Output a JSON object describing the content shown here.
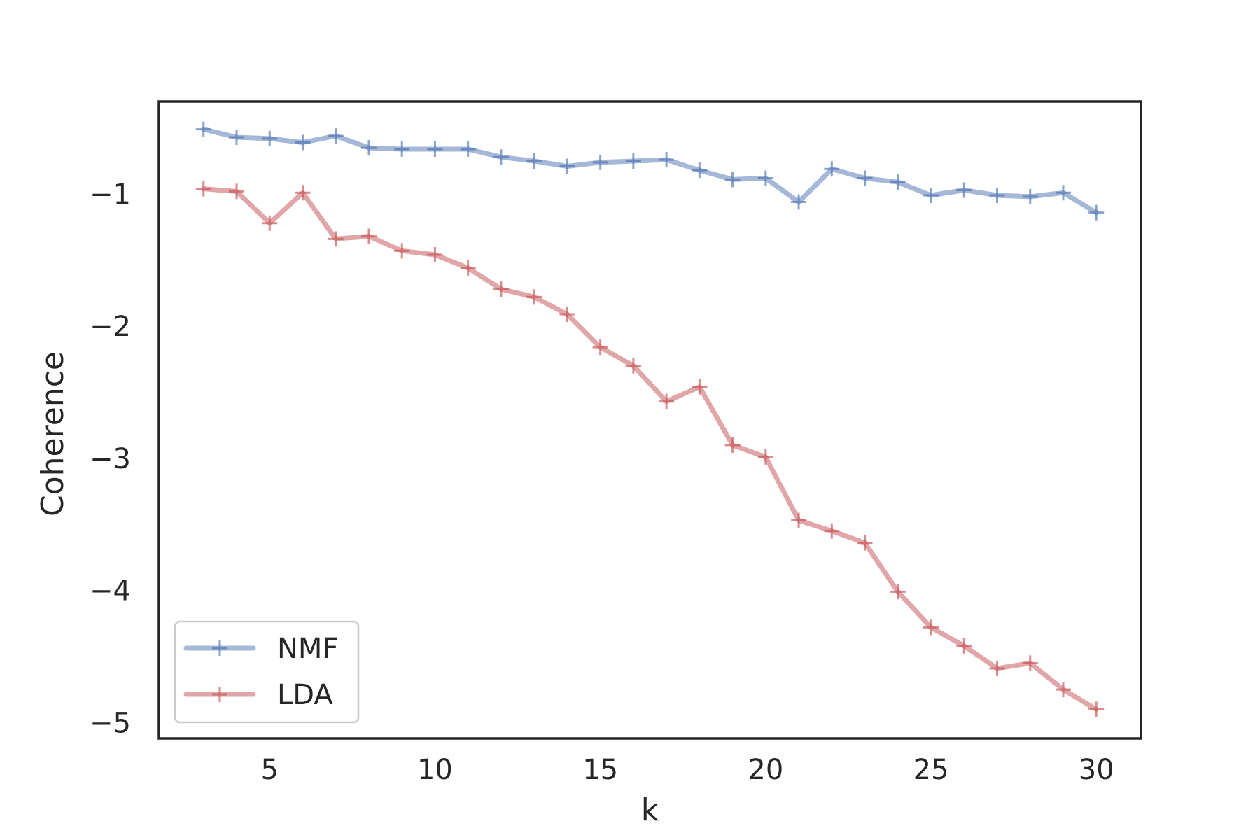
{
  "chart_data": {
    "type": "line",
    "xlabel": "k",
    "ylabel": "Coherence",
    "x": [
      3,
      4,
      5,
      6,
      7,
      8,
      9,
      10,
      11,
      12,
      13,
      14,
      15,
      16,
      17,
      18,
      19,
      20,
      21,
      22,
      23,
      24,
      25,
      26,
      27,
      28,
      29,
      30
    ],
    "xlim": [
      1.65,
      31.35
    ],
    "ylim": [
      -5.12,
      -0.3
    ],
    "xticks": [
      5,
      10,
      15,
      20,
      25,
      30
    ],
    "yticks": [
      -1,
      -2,
      -3,
      -4,
      -5
    ],
    "xtick_labels": [
      "5",
      "10",
      "15",
      "20",
      "25",
      "30"
    ],
    "ytick_labels": [
      "−1",
      "−2",
      "−3",
      "−4",
      "−5"
    ],
    "grid": false,
    "legend_position": "lower-left",
    "series": [
      {
        "name": "NMF",
        "color": "#4c72b0",
        "marker": "plus",
        "values": [
          -0.51,
          -0.57,
          -0.58,
          -0.61,
          -0.56,
          -0.65,
          -0.66,
          -0.66,
          -0.66,
          -0.72,
          -0.75,
          -0.79,
          -0.76,
          -0.75,
          -0.74,
          -0.82,
          -0.89,
          -0.88,
          -1.06,
          -0.81,
          -0.88,
          -0.91,
          -1.01,
          -0.97,
          -1.01,
          -1.02,
          -0.99,
          -1.14
        ]
      },
      {
        "name": "LDA",
        "color": "#c44e52",
        "marker": "plus",
        "values": [
          -0.96,
          -0.98,
          -1.22,
          -0.99,
          -1.34,
          -1.32,
          -1.43,
          -1.46,
          -1.56,
          -1.72,
          -1.78,
          -1.91,
          -2.16,
          -2.3,
          -2.57,
          -2.46,
          -2.9,
          -2.99,
          -3.47,
          -3.55,
          -3.64,
          -4.01,
          -4.28,
          -4.42,
          -4.59,
          -4.55,
          -4.75,
          -4.9
        ]
      }
    ]
  }
}
